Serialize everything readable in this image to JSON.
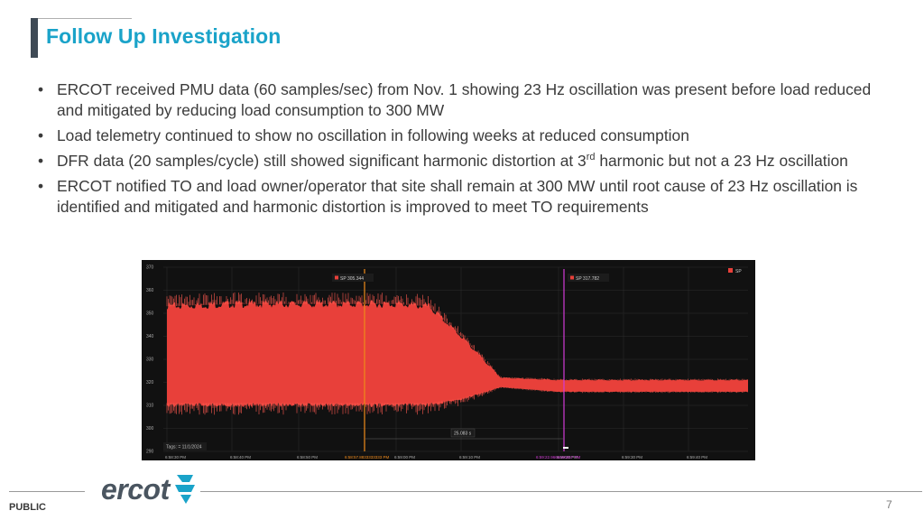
{
  "slide": {
    "title": "Follow Up Investigation",
    "bullets": [
      {
        "bullet": "•",
        "text": "ERCOT received PMU data (60 samples/sec) from Nov. 1 showing 23 Hz oscillation was present before load reduced and mitigated by reducing load consumption to 300 MW"
      },
      {
        "bullet": "•",
        "text": "Load telemetry continued to show no oscillation in following weeks at reduced consumption"
      },
      {
        "bullet": "•",
        "pre": "DFR data (20 samples/cycle) still showed significant harmonic distortion at 3",
        "sup": "rd",
        "post": " harmonic but not a 23 Hz oscillation"
      },
      {
        "bullet": "•",
        "text": "ERCOT notified TO and load owner/operator that site shall remain at 300 MW until root cause of 23 Hz oscillation is identified and mitigated and harmonic distortion is improved to meet TO requirements"
      }
    ]
  },
  "chart": {
    "y_ticks": [
      "370",
      "360",
      "350",
      "340",
      "330",
      "320",
      "310",
      "300",
      "290"
    ],
    "x_ticks": [
      "6:58:30 PM",
      "6:58:40 PM",
      "6:58:50 PM",
      "6:59:00 PM",
      "6:59:10 PM",
      "6:59:20 PM",
      "6:59:30 PM",
      "6:59:40 PM"
    ],
    "legend": "SP",
    "cursor1_label": "SP 305.344",
    "cursor2_label": "SP 317.782",
    "cursor1_time": "6:58:57.8833333333 PM",
    "cursor2_time": "6:59:22.9666666667 PM",
    "delta_label": "25.083 s",
    "tags_label": "Tags: = 11/1/2024",
    "colors": {
      "background": "#111111",
      "signal": "#e8403a",
      "cursor1": "#f08a1a",
      "cursor2": "#d23ad6",
      "grid": "#2c2c2c"
    }
  },
  "chart_data": {
    "type": "line",
    "series": [
      {
        "name": "SP",
        "x": [
          "6:58:30 PM",
          "6:58:40 PM",
          "6:58:50 PM",
          "6:59:00 PM",
          "6:59:05 PM",
          "6:59:10 PM",
          "6:59:15 PM",
          "6:59:20 PM",
          "6:59:30 PM",
          "6:59:40 PM"
        ],
        "band_min": [
          311,
          311,
          311,
          311,
          311,
          313,
          318,
          316,
          316,
          316
        ],
        "band_max": [
          353,
          354,
          354,
          354,
          353,
          340,
          322,
          321,
          321,
          321
        ]
      }
    ],
    "ylim": [
      290,
      370
    ],
    "grid": true,
    "legend": "top-right"
  },
  "footer": {
    "logo": "ercot",
    "public_label": "PUBLIC",
    "page_number": "7"
  }
}
